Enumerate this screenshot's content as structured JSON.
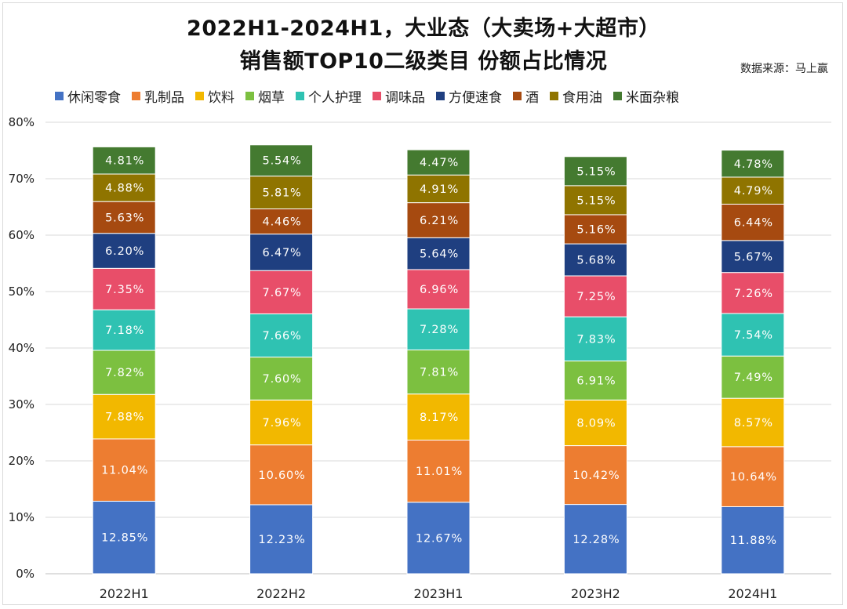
{
  "title_line1": "2022H1-2024H1，大业态（大卖场+大超市）",
  "title_line2": "销售额TOP10二级类目 份额占比情况",
  "source": "数据来源：马上赢",
  "chart_data": {
    "type": "bar",
    "stacked": true,
    "categories": [
      "2022H1",
      "2022H2",
      "2023H1",
      "2023H2",
      "2024H1"
    ],
    "series": [
      {
        "name": "休闲零食",
        "color": "#4472c4",
        "values": [
          12.85,
          12.23,
          12.67,
          12.28,
          11.88
        ],
        "labels": [
          "12.85%",
          "12.23%",
          "12.67%",
          "12.28%",
          "11.88%"
        ]
      },
      {
        "name": "乳制品",
        "color": "#ed7d31",
        "values": [
          11.04,
          10.6,
          11.01,
          10.42,
          10.64
        ],
        "labels": [
          "11.04%",
          "10.60%",
          "11.01%",
          "10.42%",
          "10.64%"
        ]
      },
      {
        "name": "饮料",
        "color": "#f2b800",
        "values": [
          7.88,
          7.96,
          8.17,
          8.09,
          8.57
        ],
        "labels": [
          "7.88%",
          "7.96%",
          "8.17%",
          "8.09%",
          "8.57%"
        ]
      },
      {
        "name": "烟草",
        "color": "#7cc040",
        "values": [
          7.82,
          7.6,
          7.81,
          6.91,
          7.49
        ],
        "labels": [
          "7.82%",
          "7.60%",
          "7.81%",
          "6.91%",
          "7.49%"
        ]
      },
      {
        "name": "个人护理",
        "color": "#2fc2b2",
        "values": [
          7.18,
          7.66,
          7.28,
          7.83,
          7.54
        ],
        "labels": [
          "7.18%",
          "7.66%",
          "7.28%",
          "7.83%",
          "7.54%"
        ]
      },
      {
        "name": "调味品",
        "color": "#e84e69",
        "values": [
          7.35,
          7.67,
          6.96,
          7.25,
          7.26
        ],
        "labels": [
          "7.35%",
          "7.67%",
          "6.96%",
          "7.25%",
          "7.26%"
        ]
      },
      {
        "name": "方便速食",
        "color": "#1f3f80",
        "values": [
          6.2,
          6.47,
          5.64,
          5.68,
          5.67
        ],
        "labels": [
          "6.20%",
          "6.47%",
          "5.64%",
          "5.68%",
          "5.67%"
        ]
      },
      {
        "name": "酒",
        "color": "#a64a10",
        "values": [
          5.63,
          4.46,
          6.21,
          5.16,
          6.44
        ],
        "labels": [
          "5.63%",
          "4.46%",
          "6.21%",
          "5.16%",
          "6.44%"
        ]
      },
      {
        "name": "食用油",
        "color": "#8f7400",
        "values": [
          4.88,
          5.81,
          4.91,
          5.15,
          4.79
        ],
        "labels": [
          "4.88%",
          "5.81%",
          "4.91%",
          "5.15%",
          "4.79%"
        ]
      },
      {
        "name": "米面杂粮",
        "color": "#447a30",
        "values": [
          4.81,
          5.54,
          4.47,
          5.15,
          4.78
        ],
        "labels": [
          "4.81%",
          "5.54%",
          "4.47%",
          "5.15%",
          "4.78%"
        ]
      }
    ],
    "ylim": [
      0,
      80
    ],
    "yticks": [
      0,
      10,
      20,
      30,
      40,
      50,
      60,
      70,
      80
    ],
    "ytick_labels": [
      "0%",
      "10%",
      "20%",
      "30%",
      "40%",
      "50%",
      "60%",
      "70%",
      "80%"
    ],
    "grid": true,
    "legend_position": "top"
  }
}
